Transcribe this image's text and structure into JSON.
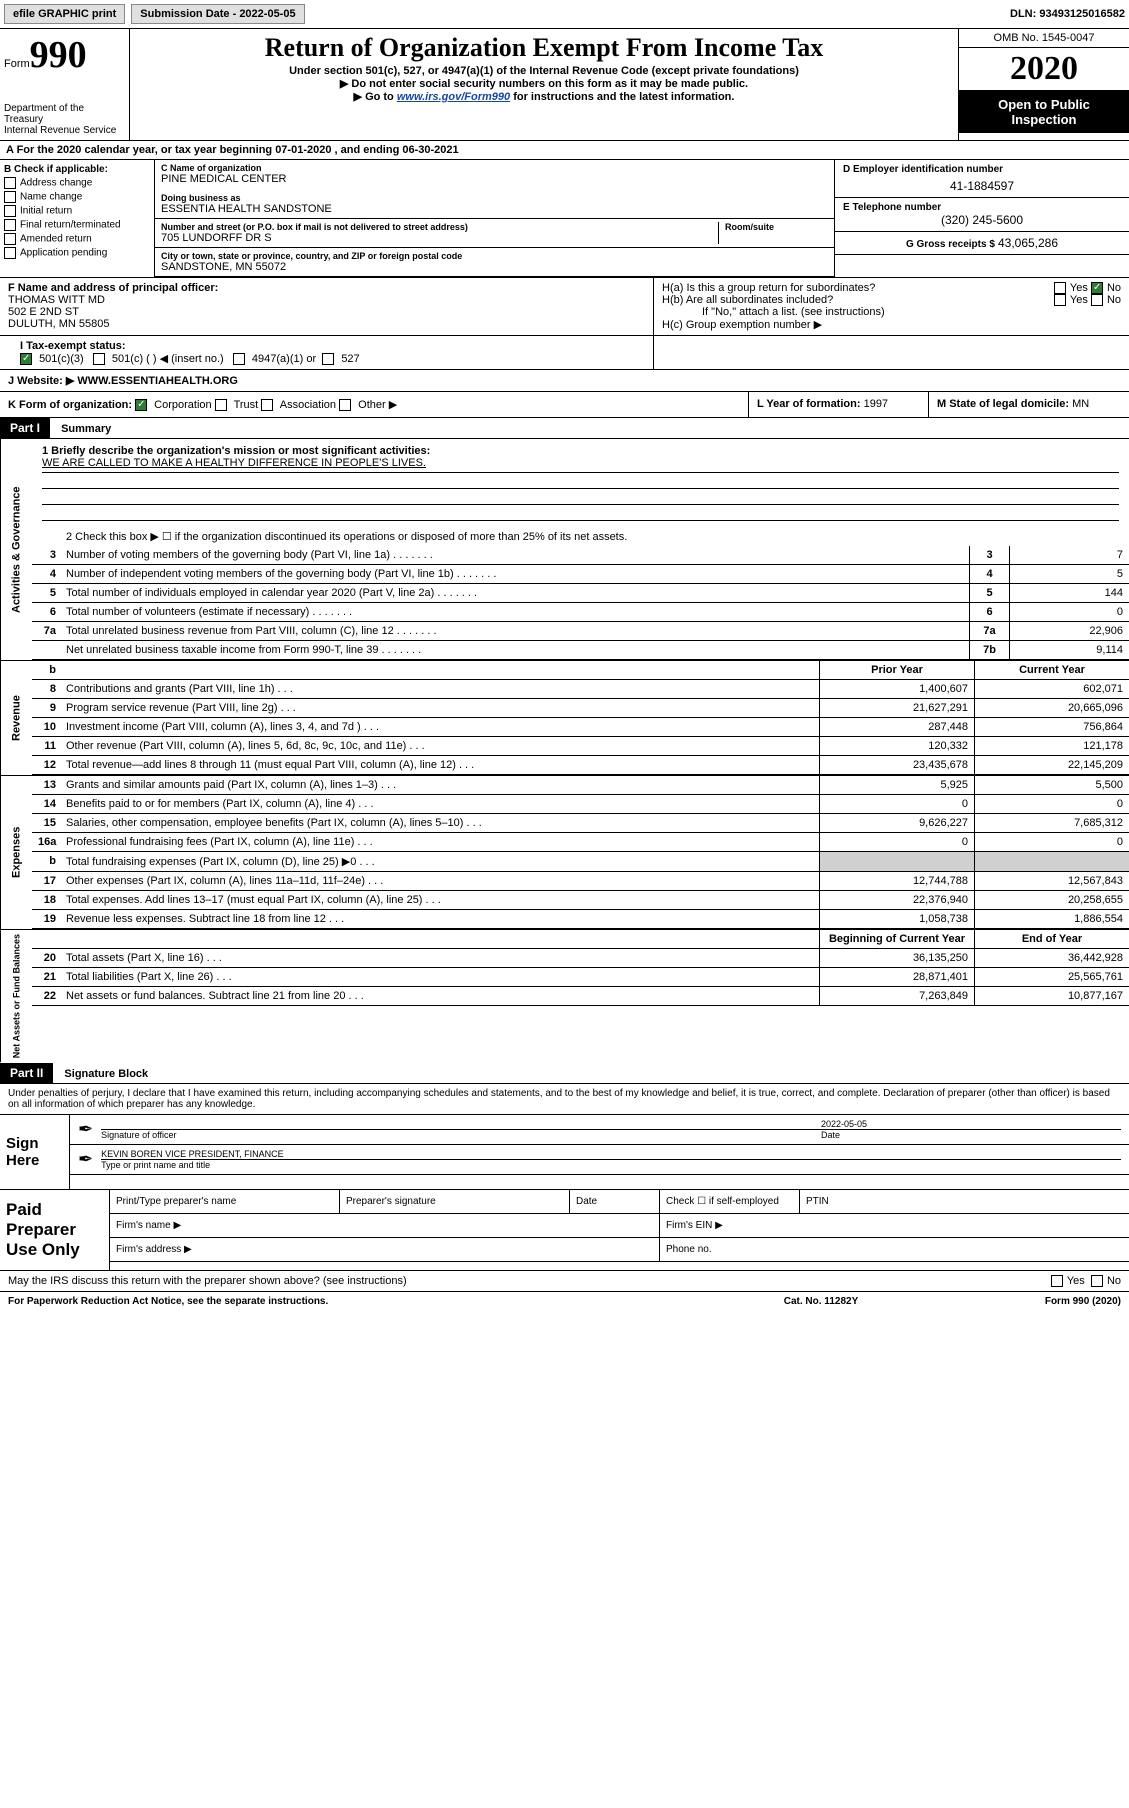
{
  "topbar": {
    "efile": "efile GRAPHIC print",
    "subdate_label": "Submission Date - 2022-05-05",
    "dln": "DLN: 93493125016582"
  },
  "header": {
    "form_label": "Form",
    "form_number": "990",
    "dept": "Department of the Treasury\nInternal Revenue Service",
    "title": "Return of Organization Exempt From Income Tax",
    "subtitle": "Under section 501(c), 527, or 4947(a)(1) of the Internal Revenue Code (except private foundations)",
    "arrow1": "▶ Do not enter social security numbers on this form as it may be made public.",
    "arrow2_pre": "▶ Go to ",
    "arrow2_link": "www.irs.gov/Form990",
    "arrow2_post": " for instructions and the latest information.",
    "omb": "OMB No. 1545-0047",
    "year": "2020",
    "open": "Open to Public Inspection"
  },
  "period": "A For the 2020 calendar year, or tax year beginning 07-01-2020   , and ending 06-30-2021",
  "boxB": {
    "label": "B Check if applicable:",
    "items": [
      "Address change",
      "Name change",
      "Initial return",
      "Final return/terminated",
      "Amended return",
      "Application pending"
    ]
  },
  "boxC": {
    "name_label": "C Name of organization",
    "name": "PINE MEDICAL CENTER",
    "dba_label": "Doing business as",
    "dba": "ESSENTIA HEALTH SANDSTONE",
    "addr_label": "Number and street (or P.O. box if mail is not delivered to street address)",
    "room_label": "Room/suite",
    "addr": "705 LUNDORFF DR S",
    "city_label": "City or town, state or province, country, and ZIP or foreign postal code",
    "city": "SANDSTONE, MN  55072"
  },
  "boxD": {
    "label": "D Employer identification number",
    "val": "41-1884597"
  },
  "boxE": {
    "label": "E Telephone number",
    "val": "(320) 245-5600"
  },
  "boxG": {
    "label": "G Gross receipts $",
    "val": "43,065,286"
  },
  "boxF": {
    "label": "F Name and address of principal officer:",
    "name": "THOMAS WITT MD",
    "addr1": "502 E 2ND ST",
    "addr2": "DULUTH, MN  55805"
  },
  "boxH": {
    "a_label": "H(a)  Is this a group return for subordinates?",
    "b_label": "H(b)  Are all subordinates included?",
    "b_note": "If \"No,\" attach a list. (see instructions)",
    "c_label": "H(c)  Group exemption number ▶",
    "yes": "Yes",
    "no": "No"
  },
  "boxI": {
    "label": "I  Tax-exempt status:",
    "opts": [
      "501(c)(3)",
      "501(c) (  ) ◀ (insert no.)",
      "4947(a)(1) or",
      "527"
    ]
  },
  "boxJ": {
    "label": "J  Website: ▶",
    "val": "WWW.ESSENTIAHEALTH.ORG"
  },
  "boxK": {
    "label": "K Form of organization:",
    "opts": [
      "Corporation",
      "Trust",
      "Association",
      "Other ▶"
    ]
  },
  "boxL": {
    "label": "L Year of formation:",
    "val": "1997"
  },
  "boxM": {
    "label": "M State of legal domicile:",
    "val": "MN"
  },
  "part1": {
    "header": "Part I",
    "title": "Summary",
    "line1_label": "1  Briefly describe the organization's mission or most significant activities:",
    "line1_val": "WE ARE CALLED TO MAKE A HEALTHY DIFFERENCE IN PEOPLE'S LIVES.",
    "line2": "2  Check this box ▶ ☐  if the organization discontinued its operations or disposed of more than 25% of its net assets.",
    "vside1": "Activities & Governance",
    "vside2": "Revenue",
    "vside3": "Expenses",
    "vside4": "Net Assets or Fund Balances",
    "gov_lines": [
      {
        "n": "3",
        "d": "Number of voting members of the governing body (Part VI, line 1a)",
        "box": "3",
        "v": "7"
      },
      {
        "n": "4",
        "d": "Number of independent voting members of the governing body (Part VI, line 1b)",
        "box": "4",
        "v": "5"
      },
      {
        "n": "5",
        "d": "Total number of individuals employed in calendar year 2020 (Part V, line 2a)",
        "box": "5",
        "v": "144"
      },
      {
        "n": "6",
        "d": "Total number of volunteers (estimate if necessary)",
        "box": "6",
        "v": "0"
      },
      {
        "n": "7a",
        "d": "Total unrelated business revenue from Part VIII, column (C), line 12",
        "box": "7a",
        "v": "22,906"
      },
      {
        "n": "",
        "d": "Net unrelated business taxable income from Form 990-T, line 39",
        "box": "7b",
        "v": "9,114"
      }
    ],
    "col_prior": "Prior Year",
    "col_current": "Current Year",
    "rev_lines": [
      {
        "n": "8",
        "d": "Contributions and grants (Part VIII, line 1h)",
        "p": "1,400,607",
        "c": "602,071"
      },
      {
        "n": "9",
        "d": "Program service revenue (Part VIII, line 2g)",
        "p": "21,627,291",
        "c": "20,665,096"
      },
      {
        "n": "10",
        "d": "Investment income (Part VIII, column (A), lines 3, 4, and 7d )",
        "p": "287,448",
        "c": "756,864"
      },
      {
        "n": "11",
        "d": "Other revenue (Part VIII, column (A), lines 5, 6d, 8c, 9c, 10c, and 11e)",
        "p": "120,332",
        "c": "121,178"
      },
      {
        "n": "12",
        "d": "Total revenue—add lines 8 through 11 (must equal Part VIII, column (A), line 12)",
        "p": "23,435,678",
        "c": "22,145,209"
      }
    ],
    "exp_lines": [
      {
        "n": "13",
        "d": "Grants and similar amounts paid (Part IX, column (A), lines 1–3)",
        "p": "5,925",
        "c": "5,500"
      },
      {
        "n": "14",
        "d": "Benefits paid to or for members (Part IX, column (A), line 4)",
        "p": "0",
        "c": "0"
      },
      {
        "n": "15",
        "d": "Salaries, other compensation, employee benefits (Part IX, column (A), lines 5–10)",
        "p": "9,626,227",
        "c": "7,685,312"
      },
      {
        "n": "16a",
        "d": "Professional fundraising fees (Part IX, column (A), line 11e)",
        "p": "0",
        "c": "0"
      },
      {
        "n": "b",
        "d": "Total fundraising expenses (Part IX, column (D), line 25) ▶0",
        "p": "",
        "c": "",
        "shaded": true
      },
      {
        "n": "17",
        "d": "Other expenses (Part IX, column (A), lines 11a–11d, 11f–24e)",
        "p": "12,744,788",
        "c": "12,567,843"
      },
      {
        "n": "18",
        "d": "Total expenses. Add lines 13–17 (must equal Part IX, column (A), line 25)",
        "p": "22,376,940",
        "c": "20,258,655"
      },
      {
        "n": "19",
        "d": "Revenue less expenses. Subtract line 18 from line 12",
        "p": "1,058,738",
        "c": "1,886,554"
      }
    ],
    "col_begin": "Beginning of Current Year",
    "col_end": "End of Year",
    "net_lines": [
      {
        "n": "20",
        "d": "Total assets (Part X, line 16)",
        "p": "36,135,250",
        "c": "36,442,928"
      },
      {
        "n": "21",
        "d": "Total liabilities (Part X, line 26)",
        "p": "28,871,401",
        "c": "25,565,761"
      },
      {
        "n": "22",
        "d": "Net assets or fund balances. Subtract line 21 from line 20",
        "p": "7,263,849",
        "c": "10,877,167"
      }
    ]
  },
  "part2": {
    "header": "Part II",
    "title": "Signature Block",
    "declaration": "Under penalties of perjury, I declare that I have examined this return, including accompanying schedules and statements, and to the best of my knowledge and belief, it is true, correct, and complete. Declaration of preparer (other than officer) is based on all information of which preparer has any knowledge."
  },
  "sign": {
    "label": "Sign Here",
    "sig_officer": "Signature of officer",
    "date_label": "Date",
    "date_val": "2022-05-05",
    "name_title": "KEVIN BOREN  VICE PRESIDENT, FINANCE",
    "type_label": "Type or print name and title"
  },
  "preparer": {
    "label": "Paid Preparer Use Only",
    "print_label": "Print/Type preparer's name",
    "sig_label": "Preparer's signature",
    "date_label": "Date",
    "check_label": "Check ☐ if self-employed",
    "ptin_label": "PTIN",
    "firm_name": "Firm's name    ▶",
    "firm_ein": "Firm's EIN ▶",
    "firm_addr": "Firm's address ▶",
    "phone": "Phone no."
  },
  "discuss": {
    "q": "May the IRS discuss this return with the preparer shown above? (see instructions)",
    "yes": "Yes",
    "no": "No"
  },
  "footer": {
    "l": "For Paperwork Reduction Act Notice, see the separate instructions.",
    "m": "Cat. No. 11282Y",
    "r": "Form 990 (2020)"
  }
}
